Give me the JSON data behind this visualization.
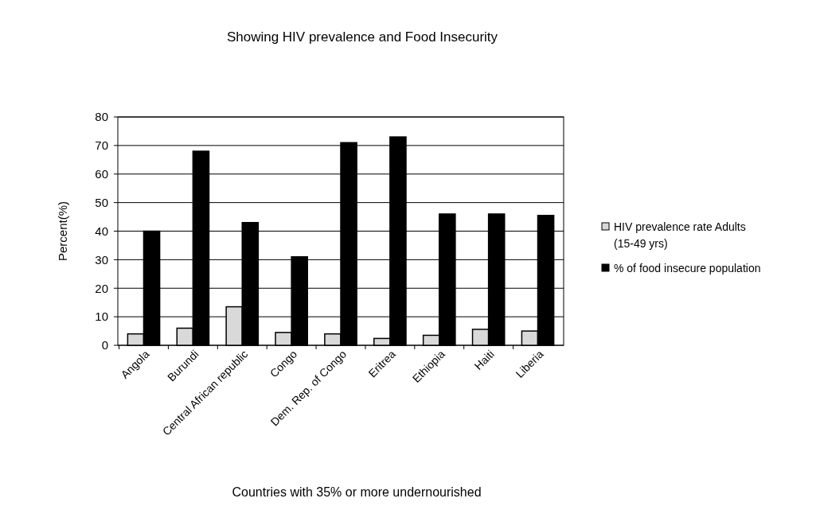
{
  "chart_data": {
    "type": "bar",
    "title": "Showing HIV prevalence and Food Insecurity",
    "xlabel": "Countries with 35% or more undernourished",
    "ylabel": "Percent(%)",
    "categories": [
      "Angola",
      "Burundi",
      "Central African republic",
      "Congo",
      "Dem. Rep. of Congo",
      "Eritrea",
      "Ethiopia",
      "Haiti",
      "Liberia"
    ],
    "series": [
      {
        "name": "HIV prevalence rate Adults (15-49 yrs)",
        "color": "#d9d9d9",
        "values": [
          4,
          6,
          13.5,
          4.5,
          4,
          2.4,
          3.5,
          5.6,
          5
        ]
      },
      {
        "name": "% of food insecure population",
        "color": "#000000",
        "values": [
          40,
          68,
          43,
          31,
          71,
          73,
          46,
          46,
          45.5
        ]
      }
    ],
    "ylim": [
      0,
      80
    ],
    "yticks": [
      0,
      10,
      20,
      30,
      40,
      50,
      60,
      70,
      80
    ],
    "grid": "y",
    "legend": "right"
  }
}
